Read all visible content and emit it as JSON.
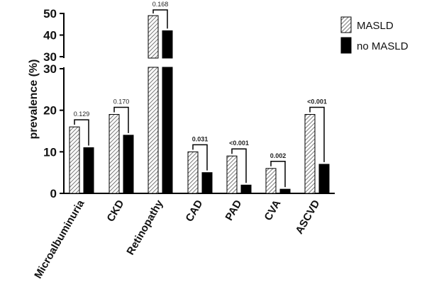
{
  "chart_data": {
    "type": "bar",
    "ylabel": "prevalence (%)",
    "ylim": [
      0,
      50
    ],
    "axis_break": {
      "lower_range": [
        0,
        30
      ],
      "upper_range": [
        30,
        50
      ]
    },
    "lower_ticks": [
      0,
      10,
      20,
      30
    ],
    "upper_ticks": [
      30,
      40,
      50
    ],
    "categories": [
      "Microalbuminuria",
      "CKD",
      "Retinopathy",
      "CAD",
      "PAD",
      "CVA",
      "ASCVD"
    ],
    "series": [
      {
        "name": "MASLD",
        "values": [
          16,
          19,
          49,
          10,
          9,
          6,
          19
        ],
        "pattern": "hatched"
      },
      {
        "name": "no MASLD",
        "values": [
          11,
          14,
          42,
          5,
          2,
          1,
          7
        ],
        "pattern": "solid"
      }
    ],
    "p_values": [
      {
        "label": "0.129",
        "bold": false
      },
      {
        "label": "0.170",
        "bold": false
      },
      {
        "label": "0.168",
        "bold": false
      },
      {
        "label": "0.031",
        "bold": true
      },
      {
        "label": "<0.001",
        "bold": true
      },
      {
        "label": "0.002",
        "bold": true
      },
      {
        "label": "<0.001",
        "bold": true
      }
    ],
    "legend_position": "top-right",
    "colors": {
      "masld_fill": "#ffffff",
      "masld_hatch": "#555555",
      "no_masld_fill": "#000000",
      "axis": "#000000"
    }
  }
}
